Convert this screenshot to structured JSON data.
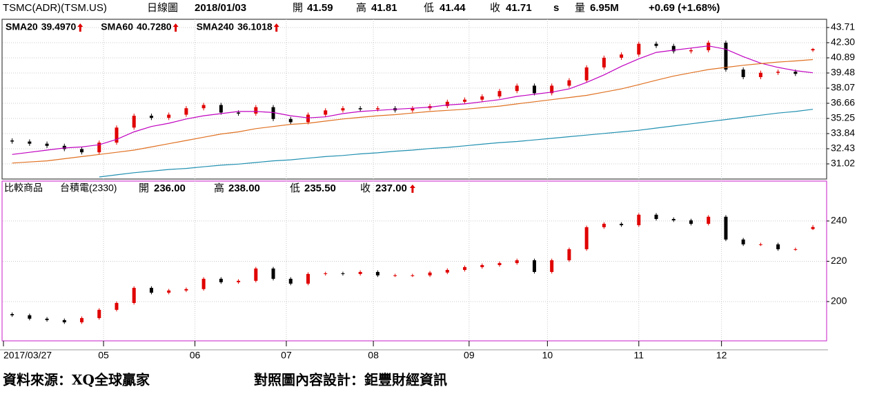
{
  "header": {
    "symbol": "TSMC(ADR)(TSM.US)",
    "period": "日線圖",
    "date": "2018/01/03",
    "flag": "s",
    "volume_name": "量",
    "volume": "6.95M",
    "change": "+0.69 (+1.68%)"
  },
  "chart_data": [
    {
      "type": "candlestick",
      "border_color": "#404040",
      "up_color": "#e00000",
      "down_color": "#000000",
      "grid": true,
      "quote": [
        {
          "name": "開",
          "value": 41.59,
          "color": "#e00000"
        },
        {
          "name": "高",
          "value": 41.81,
          "color": "#e00000"
        },
        {
          "name": "低",
          "value": 41.44,
          "color": "#e00000"
        },
        {
          "name": "收",
          "value": 41.71,
          "color": "#e00000"
        }
      ],
      "xlim": [
        0,
        189
      ],
      "xticks": [
        23,
        44,
        65,
        85,
        107,
        125,
        146,
        165
      ],
      "ylim": [
        29.61,
        44.48
      ],
      "yticks": [
        43.71,
        {
          "value": 42.3,
          "label": "42.30"
        },
        40.89,
        39.48,
        38.07,
        36.66,
        35.25,
        33.84,
        32.43,
        31.02
      ],
      "x": [
        2,
        6,
        10,
        14,
        18,
        22,
        26,
        30,
        34,
        38,
        42,
        46,
        50,
        54,
        58,
        62,
        66,
        70,
        74,
        78,
        82,
        86,
        90,
        94,
        98,
        102,
        106,
        110,
        114,
        118,
        122,
        126,
        130,
        134,
        138,
        142,
        146,
        150,
        154,
        158,
        162,
        166,
        170,
        174,
        178,
        182,
        186
      ],
      "open": [
        33.2,
        33.1,
        32.9,
        32.7,
        32.4,
        32.1,
        33.0,
        34.4,
        35.5,
        35.3,
        35.6,
        36.2,
        36.5,
        35.8,
        35.7,
        36.3,
        35.2,
        34.9,
        35.6,
        36.0,
        36.2,
        36.1,
        36.2,
        36.0,
        36.2,
        36.4,
        36.8,
        37.0,
        37.3,
        37.8,
        38.3,
        37.6,
        38.3,
        38.8,
        40.0,
        40.9,
        41.2,
        42.2,
        42.0,
        41.5,
        41.6,
        42.3,
        39.8,
        39.1,
        39.5,
        39.6,
        41.59
      ],
      "high": [
        33.4,
        33.3,
        33.1,
        32.9,
        32.6,
        33.2,
        34.6,
        35.7,
        35.7,
        35.8,
        36.4,
        36.7,
        36.7,
        36.0,
        36.5,
        36.5,
        35.4,
        35.8,
        36.2,
        36.4,
        36.4,
        36.4,
        36.4,
        36.4,
        36.6,
        37.0,
        37.2,
        37.5,
        38.0,
        38.5,
        38.5,
        38.5,
        39.0,
        40.2,
        41.1,
        41.4,
        42.4,
        42.4,
        42.2,
        41.8,
        42.5,
        42.5,
        40.0,
        39.7,
        39.8,
        39.8,
        41.81
      ],
      "low": [
        32.9,
        32.7,
        32.5,
        32.2,
        31.9,
        31.9,
        32.8,
        34.2,
        35.1,
        35.1,
        35.4,
        36.0,
        35.6,
        35.5,
        35.5,
        35.0,
        34.7,
        34.7,
        35.4,
        35.8,
        35.9,
        35.9,
        35.8,
        35.8,
        36.0,
        36.2,
        36.6,
        36.8,
        37.1,
        37.6,
        37.4,
        37.4,
        38.1,
        38.6,
        39.8,
        40.7,
        41.0,
        41.8,
        41.3,
        41.3,
        41.4,
        39.6,
        38.9,
        38.9,
        39.3,
        39.2,
        41.44
      ],
      "close": [
        33.1,
        32.9,
        32.7,
        32.4,
        32.1,
        33.0,
        34.4,
        35.5,
        35.3,
        35.6,
        36.2,
        36.5,
        35.8,
        35.7,
        36.3,
        35.2,
        34.9,
        35.6,
        36.0,
        36.2,
        36.1,
        36.2,
        36.0,
        36.2,
        36.4,
        36.8,
        37.0,
        37.3,
        37.8,
        38.3,
        37.6,
        38.3,
        38.8,
        40.0,
        40.9,
        41.2,
        42.2,
        42.0,
        41.5,
        41.6,
        42.3,
        39.8,
        39.1,
        39.5,
        39.6,
        39.4,
        41.71
      ],
      "series": [
        {
          "name": "SMA20",
          "value_label": "39.4970",
          "color": "#c000c0",
          "values": [
            31.9,
            32.1,
            32.3,
            32.5,
            32.6,
            32.8,
            33.3,
            34.0,
            34.5,
            34.8,
            35.2,
            35.5,
            35.7,
            35.9,
            35.9,
            35.8,
            35.5,
            35.3,
            35.4,
            35.7,
            35.9,
            36.0,
            36.1,
            36.2,
            36.3,
            36.5,
            36.6,
            36.8,
            37.0,
            37.3,
            37.5,
            37.7,
            38.0,
            38.6,
            39.3,
            40.1,
            40.8,
            41.4,
            41.6,
            41.8,
            42.0,
            41.7,
            41.0,
            40.4,
            40.0,
            39.7,
            39.497
          ]
        },
        {
          "name": "SMA60",
          "value_label": "40.7280",
          "color": "#e07020",
          "values": [
            31.1,
            31.2,
            31.3,
            31.5,
            31.7,
            31.9,
            32.1,
            32.3,
            32.6,
            32.9,
            33.2,
            33.5,
            33.8,
            34.0,
            34.3,
            34.5,
            34.7,
            34.8,
            35.0,
            35.2,
            35.35,
            35.5,
            35.6,
            35.75,
            35.9,
            36.0,
            36.1,
            36.25,
            36.4,
            36.6,
            36.8,
            37.0,
            37.2,
            37.4,
            37.7,
            38.0,
            38.4,
            38.8,
            39.2,
            39.5,
            39.8,
            40.0,
            40.2,
            40.35,
            40.5,
            40.6,
            40.728
          ]
        },
        {
          "name": "SMA240",
          "value_label": "36.1018",
          "color": "#1f8fb0",
          "values": [
            null,
            null,
            null,
            null,
            null,
            29.8,
            30.0,
            30.2,
            30.35,
            30.5,
            30.6,
            30.75,
            30.9,
            31.0,
            31.15,
            31.3,
            31.4,
            31.55,
            31.7,
            31.8,
            31.95,
            32.05,
            32.2,
            32.3,
            32.45,
            32.55,
            32.7,
            32.85,
            33.0,
            33.1,
            33.25,
            33.4,
            33.55,
            33.7,
            33.85,
            34.0,
            34.15,
            34.35,
            34.55,
            34.75,
            34.95,
            35.15,
            35.35,
            35.55,
            35.75,
            35.9,
            36.1018
          ]
        }
      ]
    },
    {
      "type": "candlestick",
      "title": "比較商品",
      "name": "台積電(2330)",
      "name_color": "#a01010",
      "border_color": "#d040d0",
      "up_color": "#e00000",
      "down_color": "#000000",
      "grid": true,
      "quote": [
        {
          "name": "開",
          "value": 236,
          "value_label": "236.00",
          "color": "#1a70b0"
        },
        {
          "name": "高",
          "value": 238,
          "value_label": "238.00",
          "color": "#000090"
        },
        {
          "name": "低",
          "value": 235.5,
          "value_label": "235.50",
          "color": "#a0c040"
        },
        {
          "name": "收",
          "value": 237,
          "value_label": "237.00",
          "color": "#e08090"
        }
      ],
      "xlim": [
        0,
        189
      ],
      "xticks": [
        {
          "value": 0,
          "label": "2017/03/27"
        },
        {
          "value": 23,
          "label": "05"
        },
        {
          "value": 44,
          "label": "06"
        },
        {
          "value": 65,
          "label": "07"
        },
        {
          "value": 85,
          "label": "08"
        },
        {
          "value": 107,
          "label": "09"
        },
        {
          "value": 125,
          "label": "10"
        },
        {
          "value": 146,
          "label": "11"
        },
        {
          "value": 165,
          "label": "12"
        }
      ],
      "ylim": [
        180.5,
        259.8
      ],
      "yticks": [
        200,
        220,
        240
      ],
      "x": [
        2,
        6,
        10,
        14,
        18,
        22,
        26,
        30,
        34,
        38,
        42,
        46,
        50,
        54,
        58,
        62,
        66,
        70,
        74,
        78,
        82,
        86,
        90,
        94,
        98,
        102,
        106,
        110,
        114,
        118,
        122,
        126,
        130,
        134,
        138,
        142,
        146,
        150,
        154,
        158,
        162,
        166,
        170,
        174,
        178,
        182,
        186
      ],
      "open": [
        193.8,
        193.2,
        191.5,
        190.8,
        189.7,
        191.8,
        195.9,
        199.3,
        206.8,
        204.4,
        205.5,
        206.2,
        211.3,
        209.6,
        210.3,
        216.4,
        211.3,
        208.9,
        213.7,
        214.0,
        213.7,
        214.7,
        213.0,
        213.0,
        213.0,
        214.4,
        215.7,
        217.1,
        218.1,
        219.1,
        220.5,
        214.7,
        220.5,
        226.0,
        236.9,
        238.6,
        237.9,
        243.1,
        241.0,
        240.3,
        238.6,
        242.1,
        230.8,
        228.4,
        228.4,
        226.0,
        236.0
      ],
      "high": [
        194.6,
        194.0,
        192.3,
        191.6,
        192.6,
        196.7,
        200.1,
        207.6,
        207.6,
        206.3,
        207.0,
        212.1,
        212.1,
        211.1,
        217.2,
        217.2,
        212.1,
        214.5,
        214.8,
        214.8,
        215.5,
        215.5,
        213.8,
        213.8,
        215.2,
        216.5,
        217.9,
        218.9,
        219.9,
        221.3,
        221.3,
        221.3,
        226.8,
        237.7,
        239.4,
        239.4,
        243.9,
        243.9,
        241.8,
        241.1,
        242.9,
        242.9,
        231.6,
        229.2,
        229.2,
        226.8,
        238.0
      ],
      "low": [
        192.4,
        190.7,
        190.0,
        188.9,
        188.9,
        191.0,
        195.1,
        198.5,
        203.6,
        203.6,
        204.7,
        205.4,
        208.8,
        208.8,
        209.5,
        210.5,
        208.1,
        208.1,
        212.9,
        212.9,
        212.9,
        212.2,
        212.2,
        212.2,
        212.2,
        213.6,
        214.9,
        216.3,
        217.3,
        218.3,
        213.9,
        213.9,
        219.7,
        225.2,
        236.1,
        237.1,
        237.1,
        240.2,
        239.5,
        237.8,
        237.8,
        230.0,
        227.6,
        227.6,
        225.2,
        225.2,
        235.5
      ],
      "close": [
        193.2,
        191.5,
        190.8,
        189.7,
        191.8,
        195.9,
        199.3,
        206.8,
        204.4,
        205.5,
        206.2,
        211.3,
        209.6,
        210.3,
        216.4,
        211.3,
        208.9,
        213.7,
        214.0,
        213.7,
        214.7,
        213.0,
        213.0,
        213.0,
        214.4,
        215.7,
        217.1,
        218.1,
        219.1,
        220.5,
        214.7,
        220.5,
        226.0,
        236.9,
        238.6,
        237.9,
        243.1,
        241.0,
        240.3,
        238.6,
        242.1,
        230.8,
        228.4,
        228.4,
        226.0,
        226.0,
        237.0
      ]
    }
  ],
  "footer": {
    "source": "資料來源：XQ全球贏家",
    "design": "對照圖內容設計：鉅豐財經資訊"
  }
}
